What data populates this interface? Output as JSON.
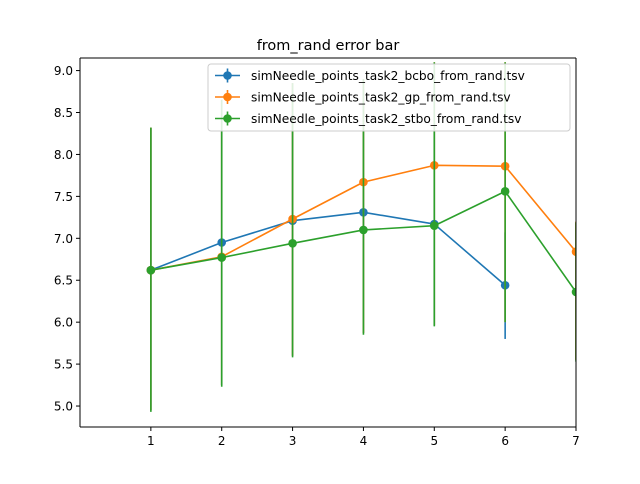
{
  "chart_data": {
    "type": "line",
    "title": "from_rand error bar",
    "xlabel": "",
    "ylabel": "",
    "xlim": [
      0,
      7
    ],
    "ylim": [
      4.75,
      9.15
    ],
    "xticks": [
      1,
      2,
      3,
      4,
      5,
      6,
      7
    ],
    "yticks": [
      5.0,
      5.5,
      6.0,
      6.5,
      7.0,
      7.5,
      8.0,
      8.5,
      9.0
    ],
    "ytick_labels": [
      "5.0",
      "5.5",
      "6.0",
      "6.5",
      "7.0",
      "7.5",
      "8.0",
      "8.5",
      "9.0"
    ],
    "grid": false,
    "legend_position": "top-right",
    "series": [
      {
        "name": "simNeedle_points_task2_bcbo_from_rand.tsv",
        "color": "#1f77b4",
        "x": [
          1,
          2,
          3,
          4,
          5,
          6
        ],
        "y": [
          6.62,
          6.95,
          7.21,
          7.31,
          7.17,
          6.44
        ],
        "err_low": [
          4.95,
          5.25,
          5.6,
          5.87,
          5.96,
          5.8
        ],
        "err_high": [
          8.32,
          8.65,
          8.85,
          8.78,
          8.4,
          7.07
        ]
      },
      {
        "name": "simNeedle_points_task2_gp_from_rand.tsv",
        "color": "#ff7f0e",
        "x": [
          1,
          2,
          3,
          4,
          5,
          6,
          7
        ],
        "y": [
          6.62,
          6.78,
          7.23,
          7.67,
          7.87,
          7.86,
          6.84
        ],
        "err_low": [
          4.95,
          5.25,
          5.6,
          5.87,
          5.96,
          6.0,
          5.55
        ],
        "err_high": [
          8.32,
          8.65,
          8.85,
          8.9,
          9.1,
          9.1,
          7.2
        ]
      },
      {
        "name": "simNeedle_points_task2_stbo_from_rand.tsv",
        "color": "#2ca02c",
        "x": [
          1,
          2,
          3,
          4,
          5,
          6,
          7
        ],
        "y": [
          6.62,
          6.77,
          6.94,
          7.1,
          7.15,
          7.56,
          6.36
        ],
        "err_low": [
          4.93,
          5.23,
          5.58,
          5.85,
          5.95,
          6.0,
          5.53
        ],
        "err_high": [
          8.32,
          8.65,
          8.85,
          8.9,
          9.1,
          9.1,
          7.19
        ]
      }
    ]
  }
}
